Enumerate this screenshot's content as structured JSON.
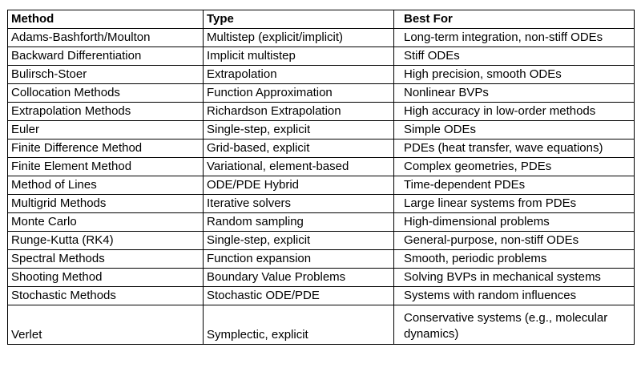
{
  "table": {
    "headers": [
      "Method",
      "Type",
      "Best For"
    ],
    "rows": [
      [
        "Adams-Bashforth/Moulton",
        "Multistep (explicit/implicit)",
        "Long-term integration, non-stiff ODEs"
      ],
      [
        "Backward Differentiation",
        "Implicit multistep",
        "Stiff ODEs"
      ],
      [
        "Bulirsch-Stoer",
        "Extrapolation",
        "High precision, smooth ODEs"
      ],
      [
        "Collocation Methods",
        "Function Approximation",
        "Nonlinear BVPs"
      ],
      [
        "Extrapolation Methods",
        "Richardson Extrapolation",
        "High accuracy in low-order methods"
      ],
      [
        "Euler",
        "Single-step, explicit",
        "Simple ODEs"
      ],
      [
        "Finite Difference Method",
        "Grid-based, explicit",
        "PDEs (heat transfer, wave equations)"
      ],
      [
        "Finite Element Method",
        "Variational, element-based",
        "Complex geometries, PDEs"
      ],
      [
        "Method of Lines",
        "ODE/PDE Hybrid",
        "Time-dependent PDEs"
      ],
      [
        "Multigrid Methods",
        "Iterative solvers",
        "Large linear systems from PDEs"
      ],
      [
        "Monte Carlo",
        "Random sampling",
        "High-dimensional problems"
      ],
      [
        "Runge-Kutta (RK4)",
        "Single-step, explicit",
        "General-purpose, non-stiff ODEs"
      ],
      [
        "Spectral Methods",
        "Function expansion",
        "Smooth, periodic problems"
      ],
      [
        "Shooting Method",
        "Boundary Value Problems",
        "Solving BVPs in mechanical systems"
      ],
      [
        "Stochastic Methods",
        "Stochastic ODE/PDE",
        "Systems with random influences"
      ],
      [
        "Verlet",
        "Symplectic, explicit",
        "Conservative systems (e.g., molecular dynamics)"
      ]
    ]
  }
}
